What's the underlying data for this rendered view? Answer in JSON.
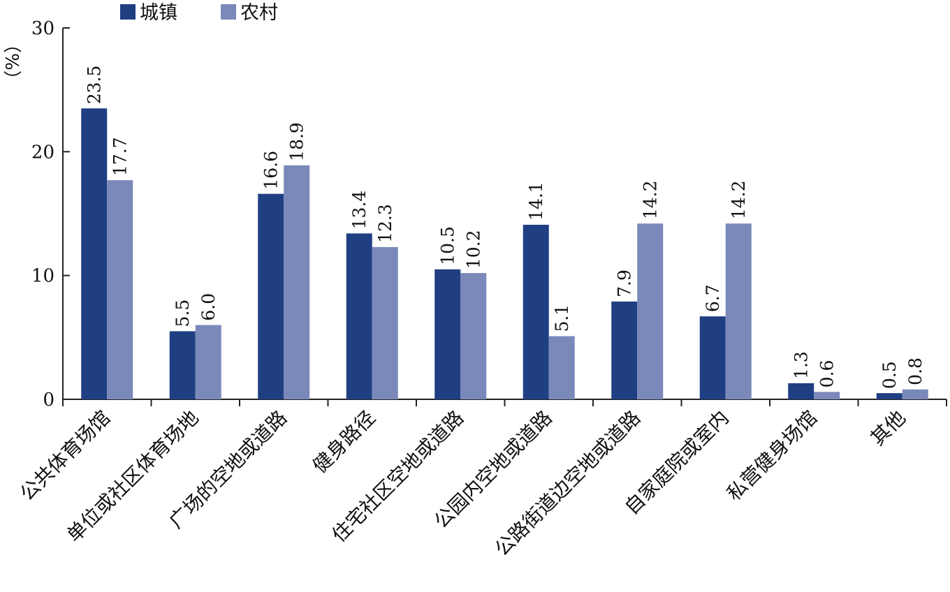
{
  "colors": {
    "urban": "#1f3f82",
    "rural": "#7b89ba",
    "axis": "#222222"
  },
  "chart_data": {
    "type": "bar",
    "unit_label": "（%）",
    "categories": [
      "公共体育场馆",
      "单位或社区体育场地",
      "广场的空地或道路",
      "健身路径",
      "住宅社区空地或道路",
      "公园内空地或道路",
      "公路街道边空地或道路",
      "自家庭院或室内",
      "私营健身场馆",
      "其他"
    ],
    "series": [
      {
        "name": "城镇",
        "values": [
          23.5,
          5.5,
          16.6,
          13.4,
          10.5,
          14.1,
          7.9,
          6.7,
          1.3,
          0.5
        ],
        "labels": [
          "23.5",
          "5.5",
          "16.6",
          "13.4",
          "10.5",
          "14.1",
          "7.9",
          "6.7",
          "1.3",
          "0.5"
        ]
      },
      {
        "name": "农村",
        "values": [
          17.7,
          6.0,
          18.9,
          12.3,
          10.2,
          5.1,
          14.2,
          14.2,
          0.6,
          0.8
        ],
        "labels": [
          "17.7",
          "6.0",
          "18.9",
          "12.3",
          "10.2",
          "5.1",
          "14.2",
          "14.2",
          "0.6",
          "0.8"
        ]
      }
    ],
    "ylim": [
      0,
      30
    ],
    "yticks": [
      "0",
      "10",
      "20",
      "30"
    ],
    "legend_position": "top-left",
    "grid": false
  }
}
